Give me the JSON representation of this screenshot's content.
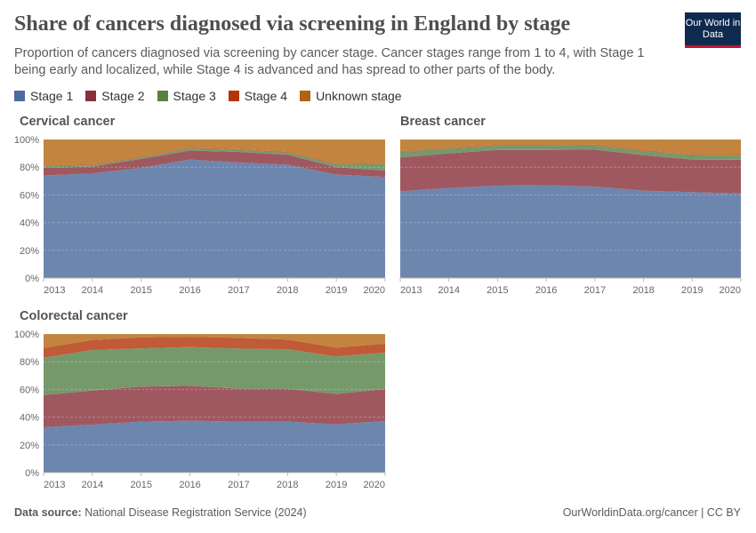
{
  "header": {
    "title": "Share of cancers diagnosed via screening in England by stage",
    "subtitle": "Proportion of cancers diagnosed via screening by cancer stage. Cancer stages range from 1 to 4, with Stage 1 being early and localized, while Stage 4 is advanced and has spread to other parts of the body.",
    "logo_text": "Our World in Data"
  },
  "footer": {
    "source_label": "Data source:",
    "source": "National Disease Registration Service (2024)",
    "credit": "OurWorldinData.org/cancer | CC BY"
  },
  "legend": [
    {
      "name": "Stage 1",
      "color": "#6d86ad"
    },
    {
      "name": "Stage 2",
      "color": "#a05860"
    },
    {
      "name": "Stage 3",
      "color": "#76996b"
    },
    {
      "name": "Stage 4",
      "color": "#c05a37"
    },
    {
      "name": "Unknown stage",
      "color": "#c2843f"
    }
  ],
  "chart_data": [
    {
      "type": "area",
      "stacked": true,
      "title": "Cervical cancer",
      "x": [
        2013,
        2014,
        2015,
        2016,
        2017,
        2018,
        2019,
        2020
      ],
      "ylim": [
        0,
        100
      ],
      "yticks": [
        "0%",
        "20%",
        "40%",
        "60%",
        "80%",
        "100%"
      ],
      "grid": true,
      "series": [
        {
          "name": "Stage 1",
          "values": [
            74,
            75.4,
            79.5,
            85.5,
            83.3,
            81.8,
            74.6,
            73
          ]
        },
        {
          "name": "Stage 2",
          "values": [
            5.7,
            5,
            6.5,
            6.5,
            7.7,
            7.2,
            5.4,
            4.6
          ]
        },
        {
          "name": "Stage 3",
          "values": [
            1,
            1,
            1,
            1.5,
            1.5,
            1.5,
            2,
            4.5
          ]
        },
        {
          "name": "Stage 4",
          "values": [
            0.5,
            0.5,
            0.5,
            0.5,
            0.5,
            0.5,
            0.5,
            0.5
          ]
        },
        {
          "name": "Unknown stage",
          "values": [
            18.8,
            18.1,
            12.5,
            6,
            7,
            9,
            17.5,
            17.4
          ]
        }
      ]
    },
    {
      "type": "area",
      "stacked": true,
      "title": "Breast cancer",
      "x": [
        2013,
        2014,
        2015,
        2016,
        2017,
        2018,
        2019,
        2020
      ],
      "ylim": [
        0,
        100
      ],
      "grid": true,
      "series": [
        {
          "name": "Stage 1",
          "values": [
            62.6,
            65,
            66.7,
            67,
            66,
            63,
            62,
            61
          ]
        },
        {
          "name": "Stage 2",
          "values": [
            24.4,
            25,
            25.8,
            25.5,
            26.7,
            25.7,
            23.5,
            24.3
          ]
        },
        {
          "name": "Stage 3",
          "values": [
            4,
            3.5,
            3,
            3,
            3,
            3,
            3,
            3
          ]
        },
        {
          "name": "Stage 4",
          "values": [
            0.5,
            0.5,
            0.5,
            0.5,
            0.5,
            0.5,
            0.5,
            0.5
          ]
        },
        {
          "name": "Unknown stage",
          "values": [
            8.5,
            6,
            4,
            4,
            3.8,
            7.8,
            11,
            11.2
          ]
        }
      ]
    },
    {
      "type": "area",
      "stacked": true,
      "title": "Colorectal cancer",
      "x": [
        2013,
        2014,
        2015,
        2016,
        2017,
        2018,
        2019,
        2020
      ],
      "ylim": [
        0,
        100
      ],
      "yticks": [
        "0%",
        "20%",
        "40%",
        "60%",
        "80%",
        "100%"
      ],
      "grid": true,
      "series": [
        {
          "name": "Stage 1",
          "values": [
            32.7,
            34.6,
            36.8,
            37.4,
            36.8,
            36.8,
            34.8,
            37.2
          ]
        },
        {
          "name": "Stage 2",
          "values": [
            23.3,
            24.6,
            25.2,
            25.2,
            23.7,
            23.7,
            22,
            23.1
          ]
        },
        {
          "name": "Stage 3",
          "values": [
            26.9,
            29.3,
            27.7,
            28,
            29,
            28.5,
            27,
            26.2
          ]
        },
        {
          "name": "Stage 4",
          "values": [
            7.1,
            7.2,
            7.9,
            7.4,
            7.7,
            7,
            6.4,
            6.5
          ]
        },
        {
          "name": "Unknown stage",
          "values": [
            10,
            4.3,
            2.4,
            2,
            2.8,
            4,
            9.8,
            7
          ]
        }
      ]
    }
  ]
}
